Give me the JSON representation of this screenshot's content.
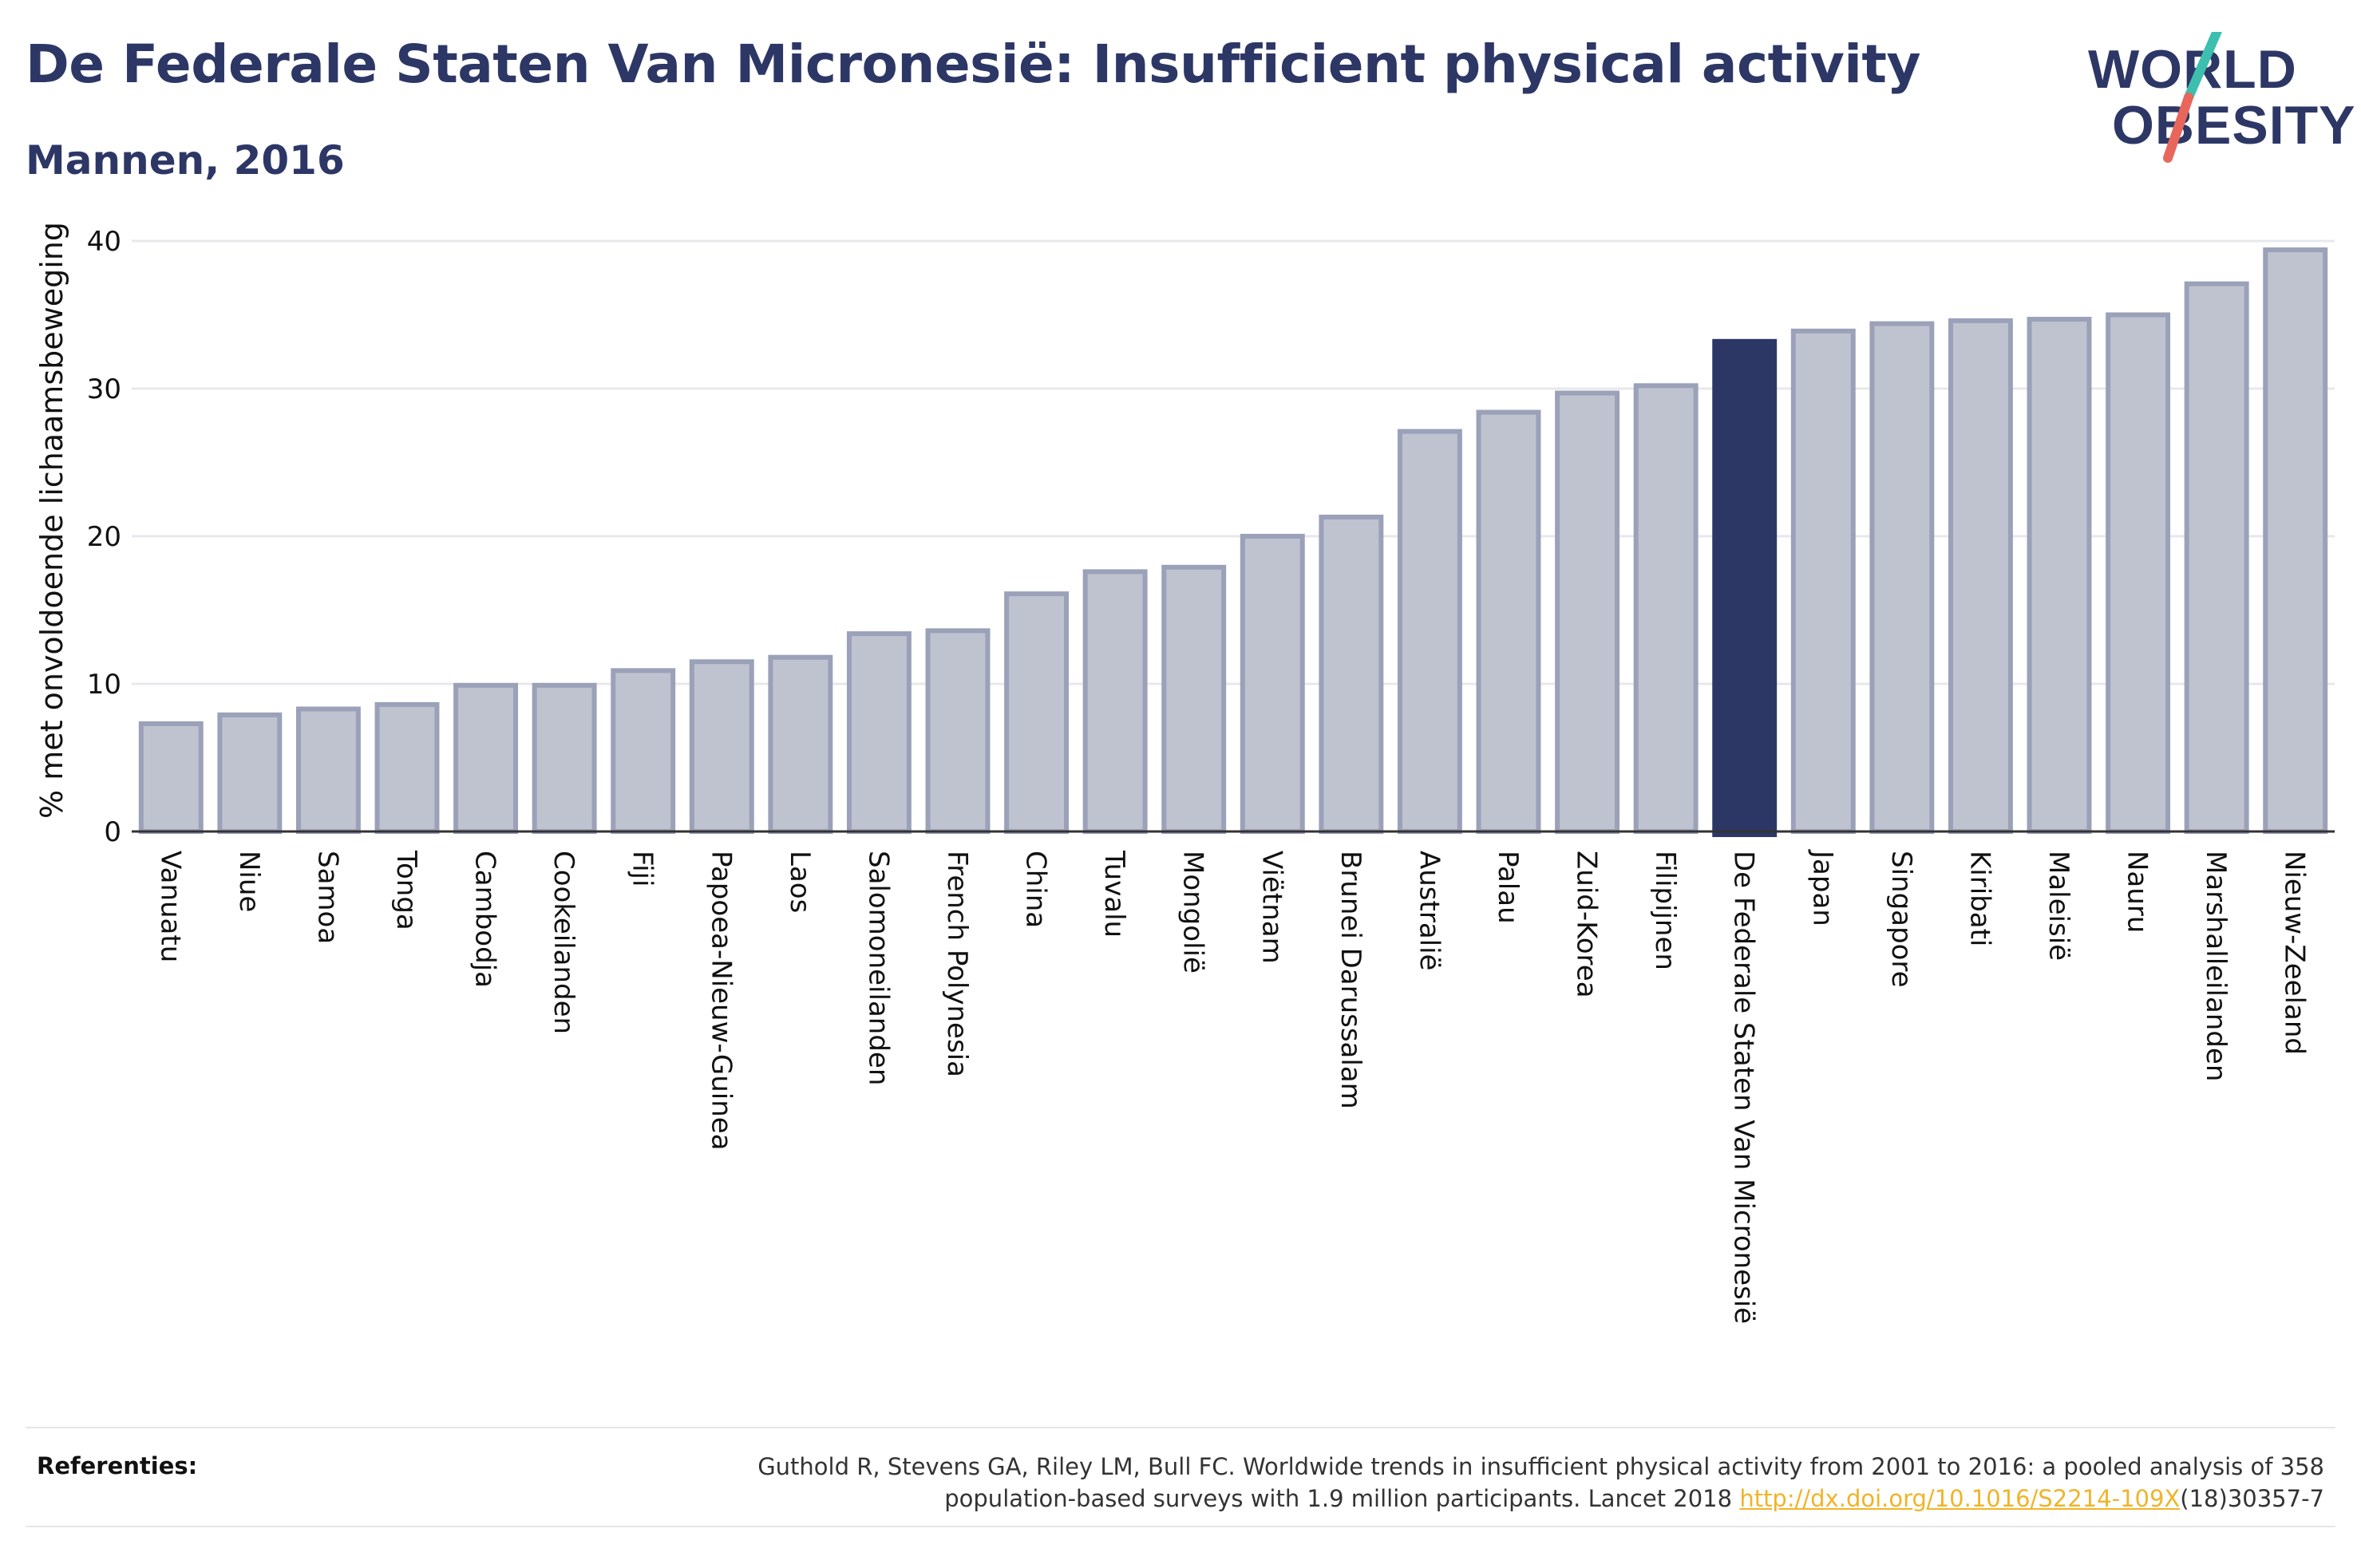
{
  "header": {
    "title": "De Federale Staten Van Micronesië: Insufficient physical activity",
    "subtitle": "Mannen, 2016"
  },
  "logo": {
    "line1": "WORLD",
    "line2": "OBESITY",
    "slash_color_top": "#3cbfae",
    "slash_color_bottom": "#e8675a"
  },
  "references": {
    "label": "Referenties:",
    "text_line1": "Guthold R, Stevens GA, Riley LM, Bull FC. Worldwide trends in insufficient physical activity from 2001 to 2016: a pooled analysis of 358",
    "text_line2_prefix": "population-based surveys with 1.9 million participants. Lancet 2018 ",
    "link": "http://dx.doi.org/10.1016/S2214-109X",
    "text_line2_suffix": "(18)30357-7"
  },
  "chart_data": {
    "type": "bar",
    "ylabel": "% met onvoldoende lichaamsbeweging",
    "ylim": [
      0,
      40
    ],
    "yticks": [
      0,
      10,
      20,
      30,
      40
    ],
    "grid": true,
    "highlight": "De Federale Staten Van Micronesië",
    "colors": {
      "bar": "#bfc3d0",
      "bar_edge": "#9aa1b8",
      "highlight": "#2d3766"
    },
    "categories": [
      "Vanuatu",
      "Niue",
      "Samoa",
      "Tonga",
      "Cambodja",
      "Cookeilanden",
      "Fiji",
      "Papoea-Nieuw-Guinea",
      "Laos",
      "Salomoneilanden",
      "French Polynesia",
      "China",
      "Tuvalu",
      "Mongolië",
      "Viëtnam",
      "Brunei Darussalam",
      "Australië",
      "Palau",
      "Zuid-Korea",
      "Filipijnen",
      "De Federale Staten Van Micronesië",
      "Japan",
      "Singapore",
      "Kiribati",
      "Maleisië",
      "Nauru",
      "Marshalleilanden",
      "Nieuw-Zeeland"
    ],
    "values": [
      7.3,
      7.9,
      8.3,
      8.6,
      9.9,
      9.9,
      10.9,
      11.5,
      11.8,
      13.4,
      13.6,
      16.1,
      17.6,
      17.9,
      20.0,
      21.3,
      27.1,
      28.4,
      29.7,
      30.2,
      33.2,
      33.9,
      34.4,
      34.6,
      34.7,
      35.0,
      37.1,
      39.4
    ]
  }
}
